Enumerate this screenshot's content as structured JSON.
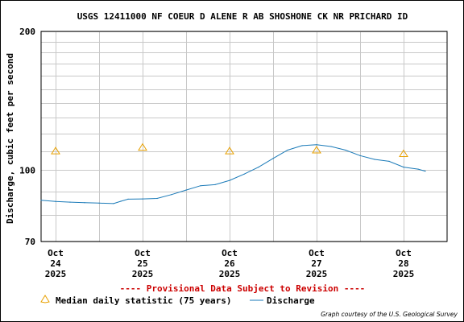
{
  "chart_data": {
    "type": "line",
    "title": "USGS 12411000 NF COEUR D ALENE R AB SHOSHONE CK NR PRICHARD ID",
    "ylabel": "Discharge, cubic feet per second",
    "xlabel": "",
    "y_scale": "log",
    "ylim": [
      70,
      200
    ],
    "y_ticks": [
      {
        "value": 70,
        "label": "70"
      },
      {
        "value": 100,
        "label": "100"
      },
      {
        "value": 200,
        "label": "200"
      }
    ],
    "y_gridlines": [
      80,
      90,
      110,
      120,
      130,
      140,
      150,
      160,
      170,
      180,
      190
    ],
    "xlim": [
      "2025-10-23T20:00",
      "2025-10-28T12:00"
    ],
    "x_ticks": [
      {
        "value": "2025-10-24T00:00",
        "month": "Oct",
        "day": "24",
        "year": "2025"
      },
      {
        "value": "2025-10-25T00:00",
        "month": "Oct",
        "day": "25",
        "year": "2025"
      },
      {
        "value": "2025-10-26T00:00",
        "month": "Oct",
        "day": "26",
        "year": "2025"
      },
      {
        "value": "2025-10-27T00:00",
        "month": "Oct",
        "day": "27",
        "year": "2025"
      },
      {
        "value": "2025-10-28T00:00",
        "month": "Oct",
        "day": "28",
        "year": "2025"
      }
    ],
    "grid": true,
    "provisional_note": "---- Provisional Data Subject to Revision ----",
    "legend_position": "bottom",
    "credit": "Graph courtesy of the U.S. Geological Survey",
    "series": [
      {
        "name": "Median daily statistic (75 years)",
        "kind": "marker",
        "marker": "triangle",
        "color": "#e8a000",
        "points": [
          {
            "x": "2025-10-24T00:00",
            "y": 110
          },
          {
            "x": "2025-10-25T00:00",
            "y": 112
          },
          {
            "x": "2025-10-26T00:00",
            "y": 110
          },
          {
            "x": "2025-10-27T00:00",
            "y": 110.5
          },
          {
            "x": "2025-10-28T00:00",
            "y": 108.5
          }
        ]
      },
      {
        "name": "Discharge",
        "kind": "line",
        "color": "#1a7ab8",
        "points": [
          {
            "x": "2025-10-23T20:00",
            "y": 86
          },
          {
            "x": "2025-10-24T00:00",
            "y": 85.5
          },
          {
            "x": "2025-10-24T04:00",
            "y": 85.2
          },
          {
            "x": "2025-10-24T08:00",
            "y": 85.0
          },
          {
            "x": "2025-10-24T12:00",
            "y": 84.8
          },
          {
            "x": "2025-10-24T16:00",
            "y": 84.6
          },
          {
            "x": "2025-10-24T18:00",
            "y": 85.6
          },
          {
            "x": "2025-10-24T20:00",
            "y": 86.5
          },
          {
            "x": "2025-10-25T00:00",
            "y": 86.6
          },
          {
            "x": "2025-10-25T04:00",
            "y": 86.8
          },
          {
            "x": "2025-10-25T08:00",
            "y": 88.5
          },
          {
            "x": "2025-10-25T12:00",
            "y": 90.5
          },
          {
            "x": "2025-10-25T16:00",
            "y": 92.5
          },
          {
            "x": "2025-10-25T20:00",
            "y": 93.0
          },
          {
            "x": "2025-10-26T00:00",
            "y": 95.0
          },
          {
            "x": "2025-10-26T04:00",
            "y": 98.0
          },
          {
            "x": "2025-10-26T08:00",
            "y": 101.5
          },
          {
            "x": "2025-10-26T12:00",
            "y": 106.0
          },
          {
            "x": "2025-10-26T16:00",
            "y": 110.5
          },
          {
            "x": "2025-10-26T20:00",
            "y": 113.0
          },
          {
            "x": "2025-10-27T00:00",
            "y": 113.5
          },
          {
            "x": "2025-10-27T04:00",
            "y": 112.5
          },
          {
            "x": "2025-10-27T08:00",
            "y": 110.5
          },
          {
            "x": "2025-10-27T12:00",
            "y": 107.5
          },
          {
            "x": "2025-10-27T16:00",
            "y": 105.5
          },
          {
            "x": "2025-10-27T20:00",
            "y": 104.5
          },
          {
            "x": "2025-10-28T00:00",
            "y": 101.5
          },
          {
            "x": "2025-10-28T04:00",
            "y": 100.5
          },
          {
            "x": "2025-10-28T06:00",
            "y": 99.5
          }
        ]
      }
    ]
  }
}
